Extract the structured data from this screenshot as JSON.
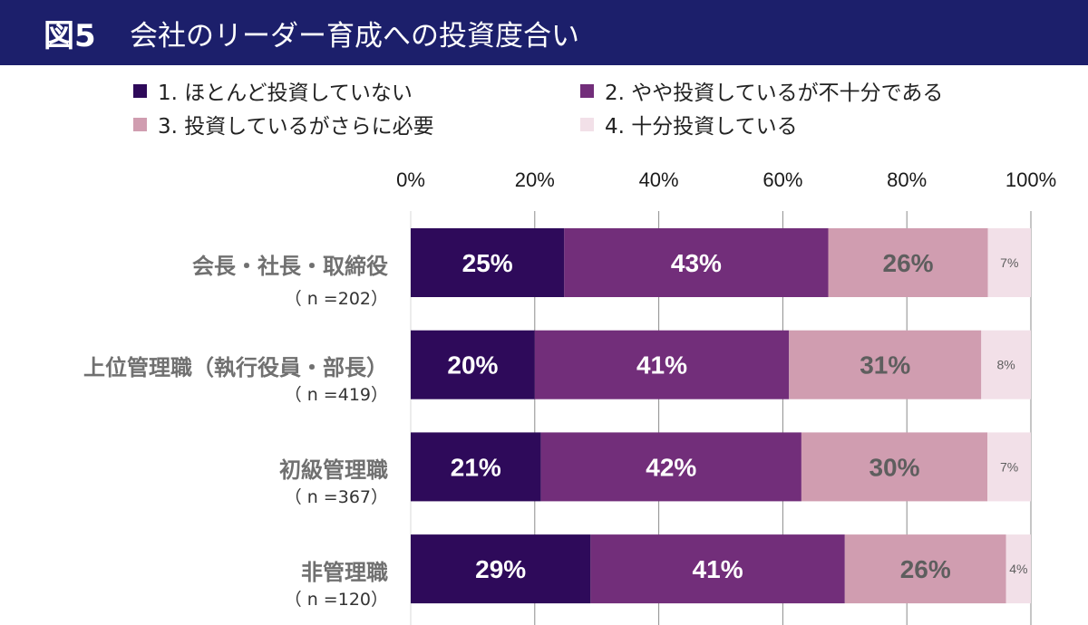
{
  "header": {
    "figure_number": "図5",
    "title": "会社のリーダー育成への投資度合い",
    "background_color": "#1c1f6b"
  },
  "chart_data": {
    "type": "bar",
    "orientation": "horizontal",
    "stacked": true,
    "title": "会社のリーダー育成への投資度合い",
    "xlabel": "",
    "ylabel": "",
    "xlim": [
      0,
      100
    ],
    "x_ticks": [
      "0%",
      "20%",
      "40%",
      "60%",
      "80%",
      "100%"
    ],
    "x_tick_values": [
      0,
      20,
      40,
      60,
      80,
      100
    ],
    "grid": true,
    "legend_position": "top",
    "categories": [
      {
        "label": "会長・社長・取締役",
        "n": "（ n =202）"
      },
      {
        "label": "上位管理職（執行役員・部長）",
        "n": "（ n =419）"
      },
      {
        "label": "初級管理職",
        "n": "（ n =367）"
      },
      {
        "label": "非管理職",
        "n": "（ n =120）"
      }
    ],
    "series": [
      {
        "name": "1. ほとんど投資していない",
        "color": "#2e0a5a",
        "label_color": "#ffffff",
        "values": [
          25,
          20,
          21,
          29
        ]
      },
      {
        "name": "2. やや投資しているが不十分である",
        "color": "#722e7a",
        "label_color": "#ffffff",
        "values": [
          43,
          41,
          42,
          41
        ]
      },
      {
        "name": "3. 投資しているがさらに必要",
        "color": "#d09db0",
        "label_color": "#5e5e5e",
        "values": [
          26,
          31,
          30,
          26
        ]
      },
      {
        "name": "4. 十分投資している",
        "color": "#f2e0e8",
        "label_color": "#5e5e5e",
        "values": [
          7,
          8,
          7,
          4
        ]
      }
    ],
    "value_labels": [
      [
        "25%",
        "43%",
        "26%",
        "7%"
      ],
      [
        "20%",
        "41%",
        "31%",
        "8%"
      ],
      [
        "21%",
        "42%",
        "30%",
        "7%"
      ],
      [
        "29%",
        "41%",
        "26%",
        "4%"
      ]
    ]
  }
}
